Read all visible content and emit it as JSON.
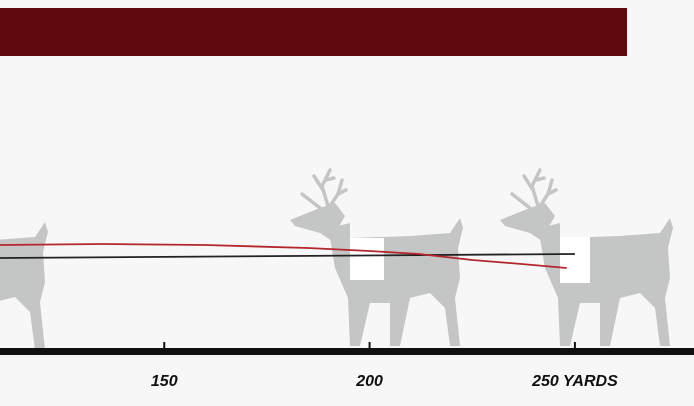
{
  "chart_data": {
    "type": "line",
    "xlim": [
      110,
      279
    ],
    "ylim": [
      -2.5,
      2.5
    ],
    "xticks": [
      150,
      200,
      {
        "value": 250,
        "label": "250 YARDS"
      }
    ],
    "series": [
      {
        "color": "#222222",
        "x": [
          110,
          250
        ],
        "values": [
          0,
          0.4
        ]
      },
      {
        "color": "#b3262c",
        "x": [
          110,
          135,
          160,
          185,
          200,
          212,
          225,
          237,
          248
        ],
        "values": [
          1.3,
          1.4,
          1.3,
          1.0,
          0.7,
          0.4,
          -0.2,
          -0.6,
          -1.0
        ]
      }
    ]
  }
}
